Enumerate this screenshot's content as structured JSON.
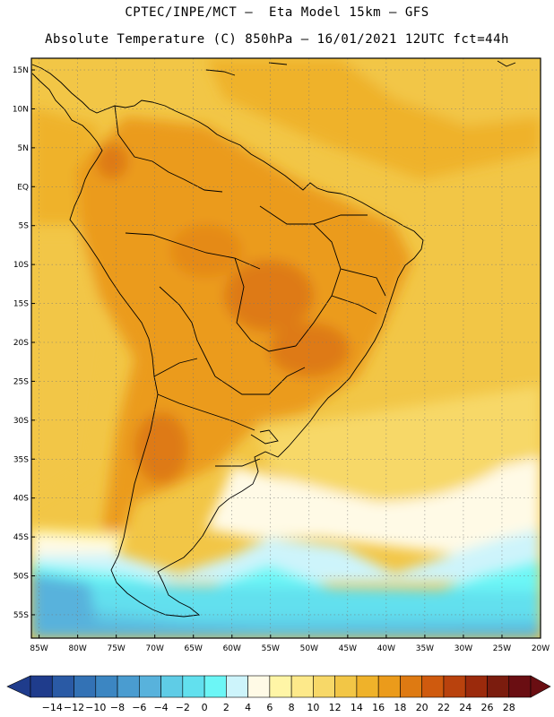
{
  "header": {
    "line1": "CPTEC/INPE/MCT –  Eta Model 15km – GFS",
    "line2": "Absolute Temperature (C) 850hPa – 16/01/2021 12UTC fct=44h"
  },
  "axes": {
    "lat_labels": [
      "15N",
      "10N",
      "5N",
      "EQ",
      "5S",
      "10S",
      "15S",
      "20S",
      "25S",
      "30S",
      "35S",
      "40S",
      "45S",
      "50S",
      "55S"
    ],
    "lat_values": [
      15,
      10,
      5,
      0,
      -5,
      -10,
      -15,
      -20,
      -25,
      -30,
      -35,
      -40,
      -45,
      -50,
      -55
    ],
    "lon_labels": [
      "85W",
      "80W",
      "75W",
      "70W",
      "65W",
      "60W",
      "55W",
      "50W",
      "45W",
      "40W",
      "35W",
      "30W",
      "25W",
      "20W"
    ],
    "lon_values": [
      -85,
      -80,
      -75,
      -70,
      -65,
      -60,
      -55,
      -50,
      -45,
      -40,
      -35,
      -30,
      -25,
      -20
    ],
    "lat_range": [
      -58,
      16.5
    ],
    "lon_range": [
      -86,
      -20
    ],
    "grid": "dotted"
  },
  "colorbar": {
    "labels": [
      "-14",
      "-12",
      "-10",
      "-8",
      "-6",
      "-4",
      "-2",
      "0",
      "2",
      "4",
      "6",
      "8",
      "10",
      "12",
      "14",
      "16",
      "18",
      "20",
      "22",
      "24",
      "26",
      "28"
    ],
    "colors": [
      "#1f3c8c",
      "#2a5aa5",
      "#3372b5",
      "#3c86c2",
      "#4a9cd0",
      "#58b2dc",
      "#5fcce6",
      "#62e0ee",
      "#6cf6f6",
      "#cdf4fb",
      "#fffae6",
      "#fff5a6",
      "#fde98a",
      "#f7d868",
      "#f2c646",
      "#efb22a",
      "#eb9b1b",
      "#de7a12",
      "#cf5a0e",
      "#b9420d",
      "#9b2a0c",
      "#7b1c0e",
      "#6a0e12"
    ],
    "under_color": "#1f3c8c",
    "over_color": "#6a0e12"
  }
}
